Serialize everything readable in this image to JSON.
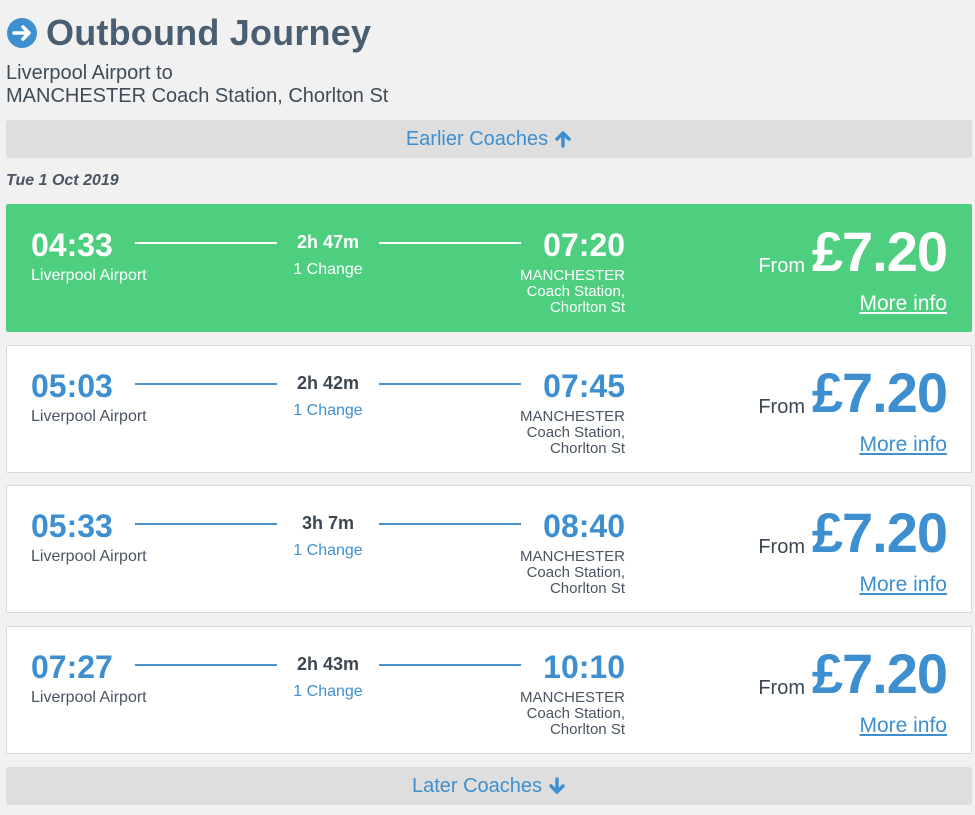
{
  "header": {
    "title": "Outbound Journey",
    "route_line1": "Liverpool Airport to",
    "route_line2": "MANCHESTER Coach Station, Chorlton St"
  },
  "earlier_label": "Earlier Coaches",
  "later_label": "Later Coaches",
  "date": "Tue 1 Oct 2019",
  "colors": {
    "accent": "#3e8fcf",
    "selected": "#4ecf80"
  },
  "journeys": [
    {
      "dep_time": "04:33",
      "dep_stop": "Liverpool Airport",
      "duration": "2h 47m",
      "changes": "1 Change",
      "arr_time": "07:20",
      "arr_stop_1": "MANCHESTER",
      "arr_stop_2": "Coach Station,",
      "arr_stop_3": "Chorlton St",
      "from": "From",
      "price": "£7.20",
      "more": "More info",
      "selected": true
    },
    {
      "dep_time": "05:03",
      "dep_stop": "Liverpool Airport",
      "duration": "2h 42m",
      "changes": "1 Change",
      "arr_time": "07:45",
      "arr_stop_1": "MANCHESTER",
      "arr_stop_2": "Coach Station,",
      "arr_stop_3": "Chorlton St",
      "from": "From",
      "price": "£7.20",
      "more": "More info",
      "selected": false
    },
    {
      "dep_time": "05:33",
      "dep_stop": "Liverpool Airport",
      "duration": "3h 7m",
      "changes": "1 Change",
      "arr_time": "08:40",
      "arr_stop_1": "MANCHESTER",
      "arr_stop_2": "Coach Station,",
      "arr_stop_3": "Chorlton St",
      "from": "From",
      "price": "£7.20",
      "more": "More info",
      "selected": false
    },
    {
      "dep_time": "07:27",
      "dep_stop": "Liverpool Airport",
      "duration": "2h 43m",
      "changes": "1 Change",
      "arr_time": "10:10",
      "arr_stop_1": "MANCHESTER",
      "arr_stop_2": "Coach Station,",
      "arr_stop_3": "Chorlton St",
      "from": "From",
      "price": "£7.20",
      "more": "More info",
      "selected": false
    }
  ]
}
